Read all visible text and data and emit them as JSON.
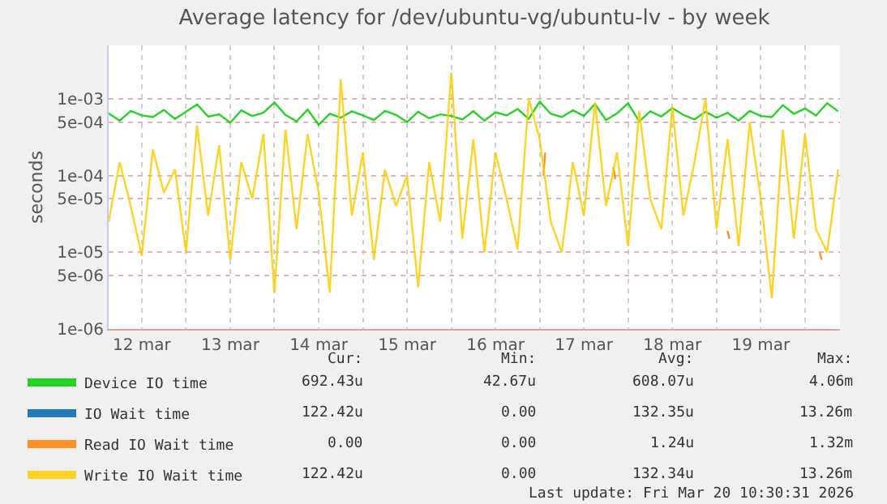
{
  "chart_data": {
    "type": "line",
    "title": "Average latency for /dev/ubuntu-vg/ubuntu-lv - by week",
    "ylabel": "seconds",
    "log": "y",
    "grid": true,
    "legend": "bottom",
    "x": [
      "2026-03-12T03:00",
      "2026-03-12T06:00",
      "2026-03-12T09:00",
      "2026-03-12T12:00",
      "2026-03-12T15:00",
      "2026-03-12T18:00",
      "2026-03-12T21:00",
      "2026-03-13T00:00",
      "2026-03-13T03:00",
      "2026-03-13T06:00",
      "2026-03-13T09:00",
      "2026-03-13T12:00",
      "2026-03-13T15:00",
      "2026-03-13T18:00",
      "2026-03-13T21:00",
      "2026-03-14T00:00",
      "2026-03-14T03:00",
      "2026-03-14T06:00",
      "2026-03-14T09:00",
      "2026-03-14T12:00",
      "2026-03-14T15:00",
      "2026-03-14T18:00",
      "2026-03-14T21:00",
      "2026-03-15T00:00",
      "2026-03-15T03:00",
      "2026-03-15T06:00",
      "2026-03-15T09:00",
      "2026-03-15T12:00",
      "2026-03-15T15:00",
      "2026-03-15T18:00",
      "2026-03-15T21:00",
      "2026-03-16T00:00",
      "2026-03-16T03:00",
      "2026-03-16T06:00",
      "2026-03-16T09:00",
      "2026-03-16T12:00",
      "2026-03-16T15:00",
      "2026-03-16T18:00",
      "2026-03-16T21:00",
      "2026-03-17T00:00",
      "2026-03-17T03:00",
      "2026-03-17T06:00",
      "2026-03-17T09:00",
      "2026-03-17T12:00",
      "2026-03-17T15:00",
      "2026-03-17T18:00",
      "2026-03-17T21:00",
      "2026-03-18T00:00",
      "2026-03-18T03:00",
      "2026-03-18T06:00",
      "2026-03-18T09:00",
      "2026-03-18T12:00",
      "2026-03-18T15:00",
      "2026-03-18T18:00",
      "2026-03-18T21:00",
      "2026-03-19T00:00",
      "2026-03-19T03:00",
      "2026-03-19T06:00",
      "2026-03-19T09:00",
      "2026-03-19T12:00",
      "2026-03-19T15:00",
      "2026-03-19T18:00",
      "2026-03-19T21:00",
      "2026-03-20T00:00",
      "2026-03-20T03:00",
      "2026-03-20T06:00",
      "2026-03-20T09:00"
    ],
    "series": [
      {
        "name": "Device IO time",
        "color": "#00cc00",
        "values": [
          0.00065,
          0.00052,
          0.0007,
          0.00061,
          0.00058,
          0.00072,
          0.00055,
          0.00068,
          0.00085,
          0.00059,
          0.00063,
          0.00049,
          0.00071,
          0.0006,
          0.00066,
          0.0009,
          0.00062,
          0.00051,
          0.00073,
          0.00046,
          0.00064,
          0.00057,
          0.00069,
          0.00061,
          0.00053,
          0.0007,
          0.00062,
          0.0005,
          0.00068,
          0.00056,
          0.00063,
          0.0006,
          0.00054,
          0.00069,
          0.00052,
          0.00067,
          0.00061,
          0.00074,
          0.00055,
          0.00092,
          0.00064,
          0.00058,
          0.00071,
          0.0006,
          0.00086,
          0.00053,
          0.00065,
          0.00088,
          0.00051,
          0.00069,
          0.00059,
          0.00076,
          0.00062,
          0.00054,
          0.00068,
          0.00057,
          0.00066,
          0.00052,
          0.0007,
          0.0006,
          0.00058,
          0.00083,
          0.00064,
          0.00075,
          0.00061,
          0.00088,
          0.00069
        ]
      },
      {
        "name": "IO Wait time",
        "color": "#0066b3",
        "values": [
          null,
          null,
          null,
          null,
          null,
          null,
          null,
          null,
          null,
          null,
          null,
          null,
          null,
          null,
          null,
          null,
          null,
          null,
          null,
          null,
          null,
          null,
          null,
          null,
          null,
          null,
          null,
          null,
          null,
          null,
          null,
          null,
          null,
          null,
          null,
          null,
          null,
          null,
          null,
          null,
          null,
          null,
          null,
          null,
          null,
          null,
          null,
          null,
          null,
          null,
          null,
          null,
          null,
          null,
          null,
          null,
          null,
          null,
          null,
          null,
          null,
          null,
          null,
          null,
          null,
          null,
          null
        ]
      },
      {
        "name": "Read IO Wait time",
        "color": "#ff8000",
        "x": [
          "2026-03-17T01:00",
          "2026-03-17T01:30",
          "2026-03-17T02:00",
          "2026-03-17T20:00",
          "2026-03-17T20:30",
          "2026-03-17T21:00",
          "2026-03-19T03:00",
          "2026-03-19T03:30",
          "2026-03-19T04:00",
          "2026-03-20T04:00",
          "2026-03-20T04:30"
        ],
        "values": [
          0.0001,
          0.0002,
          null,
          0.00013,
          9e-05,
          null,
          1.9e-05,
          1.5e-05,
          null,
          1e-05,
          8e-06
        ]
      },
      {
        "name": "Write IO Wait time",
        "color": "#ffcc00",
        "values": [
          2.5e-05,
          0.00015,
          4e-05,
          9e-06,
          0.00022,
          6e-05,
          0.00012,
          1e-05,
          0.00045,
          3e-05,
          0.00025,
          8e-06,
          0.00015,
          5e-05,
          0.00035,
          3e-06,
          0.0004,
          2e-05,
          0.00035,
          6e-05,
          3e-06,
          0.0018,
          3e-05,
          0.0002,
          8e-06,
          0.00012,
          4e-05,
          0.0001,
          3.5e-06,
          0.00015,
          2.5e-05,
          0.0022,
          1.5e-05,
          0.0003,
          1e-05,
          0.0002,
          5e-05,
          1.1e-05,
          0.001,
          0.0003,
          2.5e-05,
          1e-05,
          0.00015,
          3e-05,
          0.0009,
          4e-05,
          0.0002,
          1.2e-05,
          0.0007,
          5e-05,
          2e-05,
          0.0008,
          3e-05,
          0.00015,
          0.001,
          2e-05,
          0.0003,
          1.2e-05,
          0.0005,
          5e-05,
          2.5e-06,
          0.0004,
          1.5e-05,
          0.00035,
          2e-05,
          1e-05,
          0.00012
        ]
      }
    ],
    "xlim": [
      "2026-03-12T03:00",
      "2026-03-20T09:30"
    ],
    "xticks": [
      {
        "value": "2026-03-12T12:00",
        "label": "12 mar"
      },
      {
        "value": "2026-03-13T00:00",
        "label": null
      },
      {
        "value": "2026-03-13T12:00",
        "label": "13 mar"
      },
      {
        "value": "2026-03-14T00:00",
        "label": null
      },
      {
        "value": "2026-03-14T12:00",
        "label": "14 mar"
      },
      {
        "value": "2026-03-15T00:00",
        "label": null
      },
      {
        "value": "2026-03-15T12:00",
        "label": "15 mar"
      },
      {
        "value": "2026-03-16T00:00",
        "label": null
      },
      {
        "value": "2026-03-16T12:00",
        "label": "16 mar"
      },
      {
        "value": "2026-03-17T00:00",
        "label": null
      },
      {
        "value": "2026-03-17T12:00",
        "label": "17 mar"
      },
      {
        "value": "2026-03-18T00:00",
        "label": null
      },
      {
        "value": "2026-03-18T12:00",
        "label": "18 mar"
      },
      {
        "value": "2026-03-19T00:00",
        "label": null
      },
      {
        "value": "2026-03-19T12:00",
        "label": "19 mar"
      },
      {
        "value": "2026-03-20T00:00",
        "label": null
      }
    ],
    "ylim": [
      1e-06,
      0.005
    ],
    "yticks": [
      {
        "value": 1e-06,
        "label": "1e-06"
      },
      {
        "value": 5e-06,
        "label": "5e-06"
      },
      {
        "value": 1e-05,
        "label": "1e-05"
      },
      {
        "value": 5e-05,
        "label": "5e-05"
      },
      {
        "value": 0.0001,
        "label": "1e-04"
      },
      {
        "value": 0.0005,
        "label": "5e-04"
      },
      {
        "value": 0.001,
        "label": "1e-03"
      }
    ],
    "annotations": [
      "Cur:",
      "Min:",
      "Avg:",
      "Max:",
      "692.43u",
      "42.67u",
      "608.07u",
      "4.06m",
      "122.42u",
      "0.00",
      "132.35u",
      "13.26m",
      "0.00",
      "0.00",
      "1.24u",
      "1.32m",
      "122.42u",
      "0.00",
      "132.34u",
      "13.26m",
      "Last update: Fri Mar 20 10:30:31 2026"
    ]
  }
}
